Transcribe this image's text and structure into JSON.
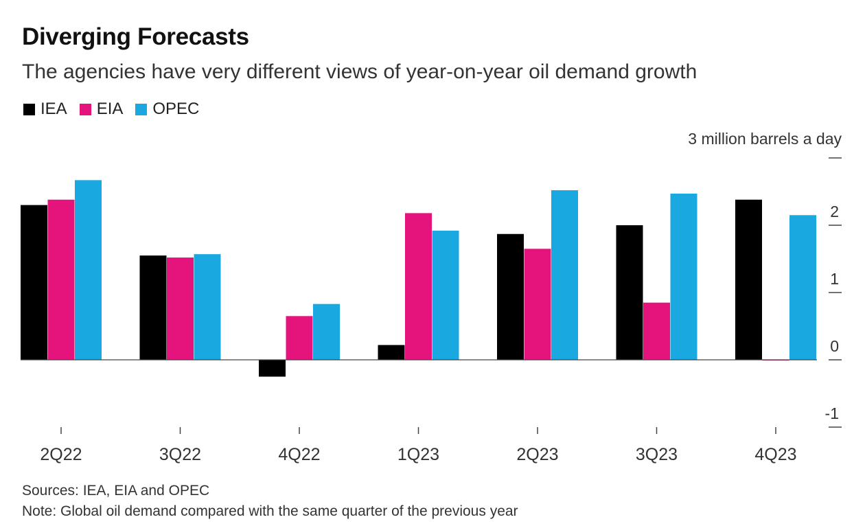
{
  "title": "Diverging Forecasts",
  "subtitle": "The agencies have very different views of year-on-year oil demand growth",
  "unit_label": "3 million barrels a day",
  "sources": "Sources: IEA, EIA and OPEC",
  "note": "Note: Global oil demand compared with the same quarter of the previous year",
  "colors": {
    "IEA": "#000000",
    "EIA": "#e5147d",
    "OPEC": "#1aa8e0"
  },
  "chart_data": {
    "type": "bar",
    "categories": [
      "2Q22",
      "3Q22",
      "4Q22",
      "1Q23",
      "2Q23",
      "3Q23",
      "4Q23"
    ],
    "series": [
      {
        "name": "IEA",
        "values": [
          2.3,
          1.55,
          -0.25,
          0.22,
          1.87,
          2.0,
          2.38
        ]
      },
      {
        "name": "EIA",
        "values": [
          2.38,
          1.52,
          0.65,
          2.18,
          1.65,
          0.85,
          0.0
        ]
      },
      {
        "name": "OPEC",
        "values": [
          2.67,
          1.57,
          0.83,
          1.92,
          2.52,
          2.47,
          2.15
        ]
      }
    ],
    "ylim": [
      -1,
      3
    ],
    "yticks": [
      -1,
      0,
      1,
      2,
      3
    ],
    "ytick_labels": [
      "-1",
      "0",
      "1",
      "2",
      ""
    ],
    "legend": "top-left",
    "grid": false
  }
}
